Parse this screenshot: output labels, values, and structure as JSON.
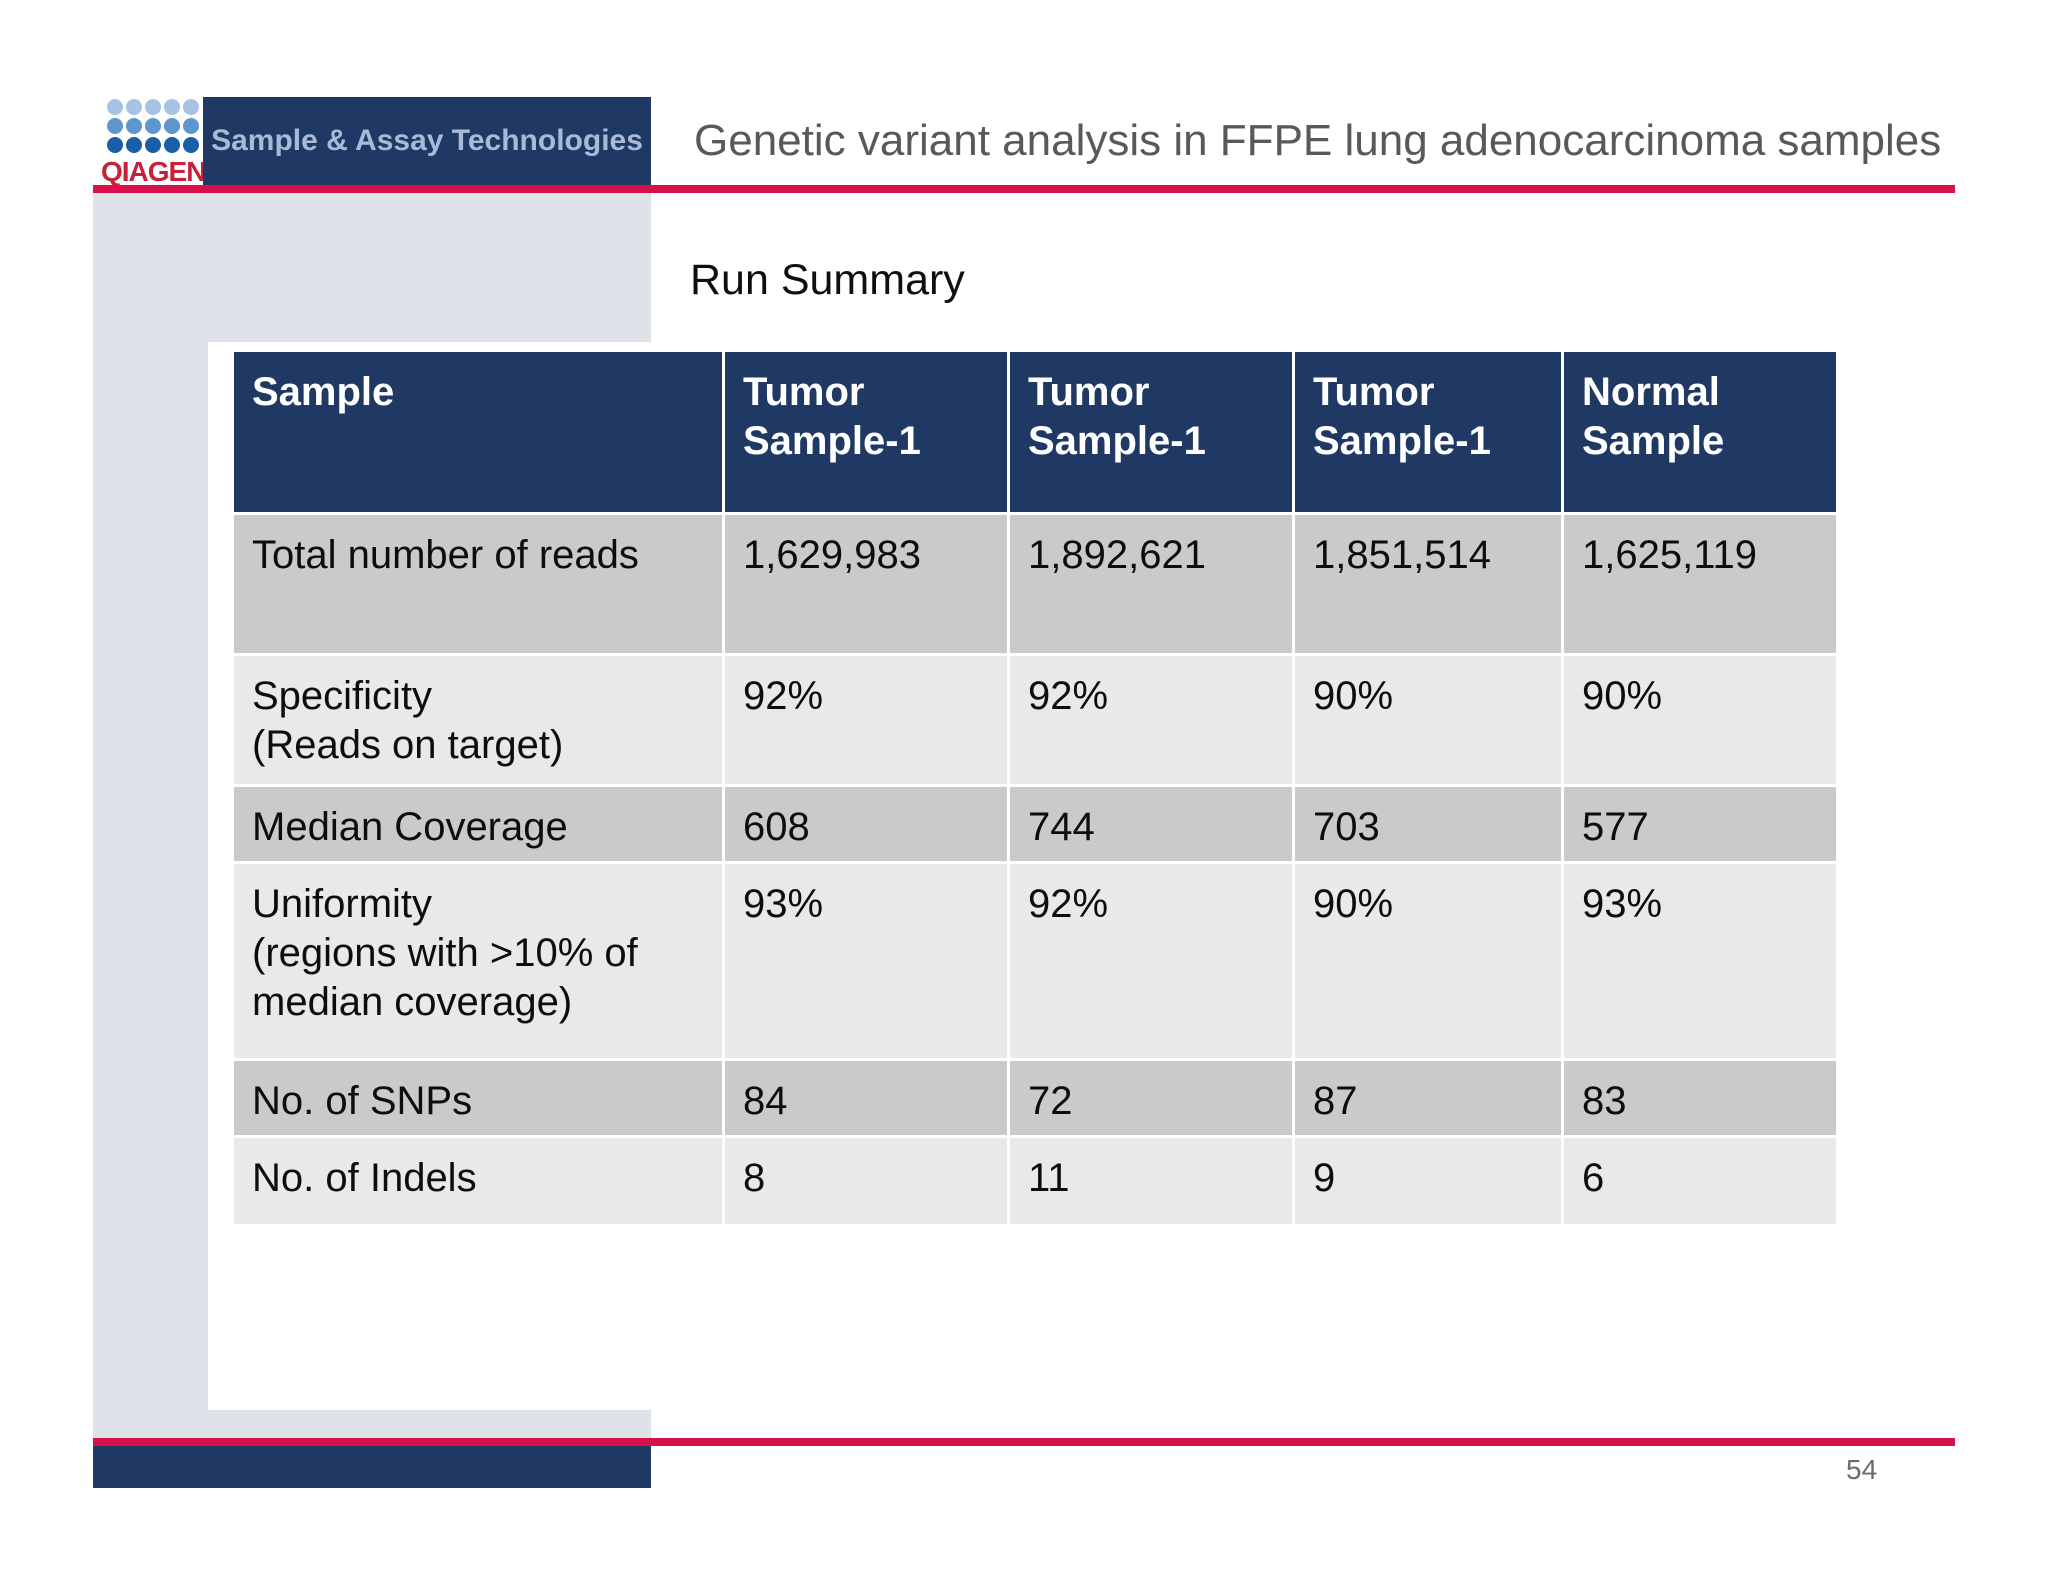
{
  "header": {
    "logo_text": "QIAGEN",
    "banner_text": "Sample & Assay Technologies",
    "title": "Genetic variant analysis in FFPE lung adenocarcinoma samples"
  },
  "section_title": "Run Summary",
  "table": {
    "columns": [
      "Sample",
      "Tumor Sample-1",
      "Tumor Sample-1",
      "Tumor Sample-1",
      "Normal Sample"
    ],
    "rows": [
      {
        "label": "Total number of reads",
        "sublabel": "",
        "values": [
          "1,629,983",
          "1,892,621",
          "1,851,514",
          "1,625,119"
        ]
      },
      {
        "label": "Specificity",
        "sublabel": "(Reads on target)",
        "values": [
          "92%",
          "92%",
          "90%",
          "90%"
        ]
      },
      {
        "label": "Median Coverage",
        "sublabel": "",
        "values": [
          "608",
          "744",
          "703",
          "577"
        ]
      },
      {
        "label": "Uniformity",
        "sublabel": "(regions with >10% of median coverage)",
        "values": [
          "93%",
          "92%",
          "90%",
          "93%"
        ]
      },
      {
        "label": "No. of SNPs",
        "sublabel": "",
        "values": [
          "84",
          "72",
          "87",
          "83"
        ]
      },
      {
        "label": "No. of Indels",
        "sublabel": "",
        "values": [
          "8",
          "11",
          "9",
          "6"
        ]
      }
    ]
  },
  "footer": {
    "page_number": "54"
  },
  "colors": {
    "navy": "#1F3864",
    "accent_red": "#D9104A",
    "logo_red": "#C9203A",
    "band_gray": "#DFE2E8",
    "row_dark": "#CACACC",
    "row_light": "#E9E9EC",
    "title_gray": "#595959",
    "banner_text": "#A9BAD9"
  }
}
